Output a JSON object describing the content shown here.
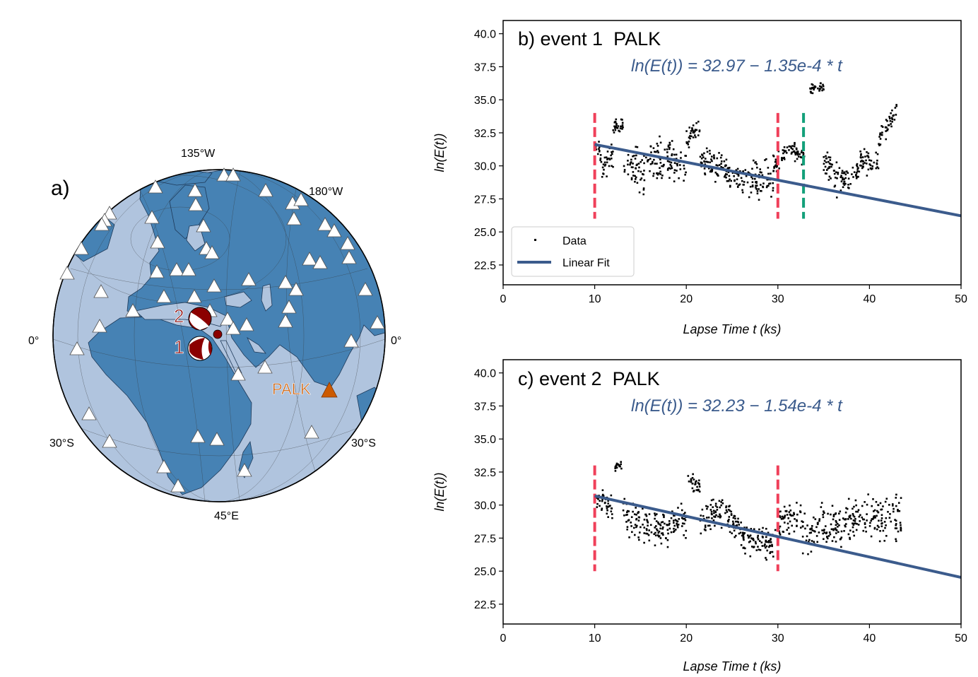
{
  "colors": {
    "ocean": "#b0c4de",
    "land": "#4682b4",
    "fit_line": "#3b5b8c",
    "vline_event": "#f0405a",
    "vline_extra": "#13a07a",
    "station": "#ffffff",
    "palk": "#cc5a00",
    "event": "#8b0000",
    "data_points": "#000000"
  },
  "map": {
    "panel_label": "a)",
    "labels": {
      "lon_135w": "135°W",
      "lon_180w": "180°W",
      "lon_0_left": "0°",
      "lon_0_right": "0°",
      "lat_30s_left": "30°S",
      "lat_30s_right": "30°S",
      "lon_45e": "45°E"
    },
    "events": [
      {
        "label": "2"
      },
      {
        "label": "1"
      }
    ],
    "station_name": "PALK",
    "station_icon": "triangle-icon",
    "event_icon": "beachball-icon"
  },
  "chart_data": [
    {
      "type": "scatter",
      "title": "b) event 1  PALK",
      "equation": "ln(E(t)) = 32.97 − 1.35e-4 * t",
      "xlabel": "Lapse Time t (ks)",
      "ylabel": "ln(E(t))",
      "xlim": [
        0,
        50
      ],
      "ylim": [
        21,
        41
      ],
      "xticks": [
        0,
        10,
        20,
        30,
        40,
        50
      ],
      "yticks": [
        22.5,
        25.0,
        27.5,
        30.0,
        32.5,
        35.0,
        37.5,
        40.0
      ],
      "fit": {
        "intercept": 32.97,
        "slope_per_ks": -0.135,
        "x_start": 10,
        "x_end": 50
      },
      "vlines": [
        {
          "x": 10,
          "y_range": [
            26,
            34
          ],
          "color": "#f0405a"
        },
        {
          "x": 30,
          "y_range": [
            26,
            34
          ],
          "color": "#f0405a"
        },
        {
          "x": 32.8,
          "y_range": [
            26,
            34
          ],
          "color": "#13a07a"
        }
      ],
      "legend": {
        "position": "lower-left",
        "entries": [
          "Data",
          "Linear Fit"
        ]
      },
      "series": [
        {
          "name": "Data",
          "segments": [
            {
              "x0": 10.1,
              "x1": 11.0,
              "y0": 31.8,
              "y1": 29.6,
              "noise": 1.0
            },
            {
              "x0": 11.0,
              "x1": 12.0,
              "y0": 29.8,
              "y1": 31.0,
              "noise": 1.2
            },
            {
              "x0": 12.0,
              "x1": 13.2,
              "y0": 32.8,
              "y1": 33.3,
              "noise": 0.5
            },
            {
              "x0": 13.2,
              "x1": 15.5,
              "y0": 30.2,
              "y1": 29.5,
              "noise": 1.4
            },
            {
              "x0": 15.5,
              "x1": 17.5,
              "y0": 30.5,
              "y1": 30.0,
              "noise": 1.5
            },
            {
              "x0": 17.5,
              "x1": 20.0,
              "y0": 30.5,
              "y1": 30.0,
              "noise": 1.2
            },
            {
              "x0": 20.0,
              "x1": 21.5,
              "y0": 32.0,
              "y1": 33.0,
              "noise": 0.6
            },
            {
              "x0": 21.5,
              "x1": 24.0,
              "y0": 30.5,
              "y1": 30.0,
              "noise": 1.1
            },
            {
              "x0": 24.0,
              "x1": 26.5,
              "y0": 29.5,
              "y1": 29.0,
              "noise": 1.0
            },
            {
              "x0": 26.5,
              "x1": 29.5,
              "y0": 29.0,
              "y1": 28.8,
              "noise": 1.4
            },
            {
              "x0": 29.5,
              "x1": 31.0,
              "y0": 30.0,
              "y1": 31.3,
              "noise": 0.8
            },
            {
              "x0": 31.0,
              "x1": 33.0,
              "y0": 31.5,
              "y1": 30.5,
              "noise": 0.6
            },
            {
              "x0": 33.5,
              "x1": 35.0,
              "y0": 35.8,
              "y1": 36.0,
              "noise": 0.3
            },
            {
              "x0": 35.0,
              "x1": 37.0,
              "y0": 30.0,
              "y1": 29.0,
              "noise": 1.2
            },
            {
              "x0": 37.0,
              "x1": 39.0,
              "y0": 28.8,
              "y1": 29.6,
              "noise": 0.8
            },
            {
              "x0": 39.0,
              "x1": 41.0,
              "y0": 30.5,
              "y1": 30.2,
              "noise": 0.8
            },
            {
              "x0": 41.0,
              "x1": 43.0,
              "y0": 32.0,
              "y1": 34.3,
              "noise": 0.7
            }
          ]
        }
      ]
    },
    {
      "type": "scatter",
      "title": "c) event 2  PALK",
      "equation": "ln(E(t)) = 32.23 − 1.54e-4 * t",
      "xlabel": "Lapse Time t (ks)",
      "ylabel": "ln(E(t))",
      "xlim": [
        0,
        50
      ],
      "ylim": [
        21,
        41
      ],
      "xticks": [
        0,
        10,
        20,
        30,
        40,
        50
      ],
      "yticks": [
        22.5,
        25.0,
        27.5,
        30.0,
        32.5,
        35.0,
        37.5,
        40.0
      ],
      "fit": {
        "intercept": 32.23,
        "slope_per_ks": -0.154,
        "x_start": 10,
        "x_end": 50
      },
      "vlines": [
        {
          "x": 10,
          "y_range": [
            25,
            33
          ],
          "color": "#f0405a"
        },
        {
          "x": 30,
          "y_range": [
            25,
            33
          ],
          "color": "#f0405a"
        }
      ],
      "series": [
        {
          "name": "Data",
          "segments": [
            {
              "x0": 10.1,
              "x1": 12.0,
              "y0": 30.6,
              "y1": 29.8,
              "noise": 0.8
            },
            {
              "x0": 12.2,
              "x1": 13.0,
              "y0": 33.0,
              "y1": 33.1,
              "noise": 0.3
            },
            {
              "x0": 13.0,
              "x1": 15.0,
              "y0": 29.5,
              "y1": 28.5,
              "noise": 1.2
            },
            {
              "x0": 15.0,
              "x1": 18.0,
              "y0": 28.5,
              "y1": 28.0,
              "noise": 1.3
            },
            {
              "x0": 18.0,
              "x1": 20.0,
              "y0": 28.5,
              "y1": 28.8,
              "noise": 1.0
            },
            {
              "x0": 20.2,
              "x1": 21.5,
              "y0": 31.8,
              "y1": 31.5,
              "noise": 0.5
            },
            {
              "x0": 21.5,
              "x1": 24.0,
              "y0": 29.0,
              "y1": 29.8,
              "noise": 1.1
            },
            {
              "x0": 24.0,
              "x1": 26.0,
              "y0": 29.5,
              "y1": 28.2,
              "noise": 1.0
            },
            {
              "x0": 26.0,
              "x1": 30.0,
              "y0": 27.2,
              "y1": 27.0,
              "noise": 1.1
            },
            {
              "x0": 30.0,
              "x1": 32.5,
              "y0": 28.5,
              "y1": 29.5,
              "noise": 1.2
            },
            {
              "x0": 32.5,
              "x1": 37.0,
              "y0": 28.0,
              "y1": 28.5,
              "noise": 1.5
            },
            {
              "x0": 37.0,
              "x1": 43.5,
              "y0": 28.8,
              "y1": 29.0,
              "noise": 1.4
            }
          ]
        }
      ]
    }
  ]
}
